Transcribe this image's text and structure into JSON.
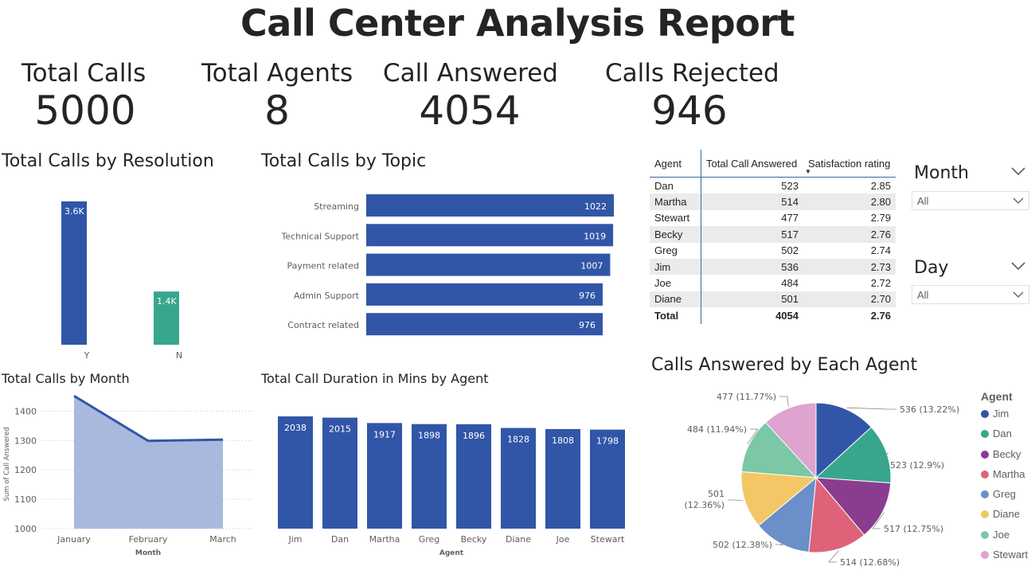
{
  "title": "Call Center Analysis Report",
  "kpis": [
    {
      "label": "Total Calls",
      "value": "5000"
    },
    {
      "label": "Total Agents",
      "value": "8"
    },
    {
      "label": "Call Answered",
      "value": "4054"
    },
    {
      "label": "Calls Rejected",
      "value": "946"
    }
  ],
  "colors": {
    "primary": "#3156a7",
    "teal": "#36a78c",
    "area_fill": "#a9b9dd",
    "table_line": "#3a66a7"
  },
  "chart_data": [
    {
      "type": "bar",
      "title": "Total Calls by Resolution",
      "categories": [
        "Y",
        "N"
      ],
      "values": [
        3646,
        1354
      ],
      "data_labels": [
        "3.6K",
        "1.4K"
      ],
      "colors": [
        "#3156a7",
        "#36a78c"
      ]
    },
    {
      "type": "bar",
      "orientation": "horizontal",
      "title": "Total Calls by Topic",
      "categories": [
        "Streaming",
        "Technical Support",
        "Payment related",
        "Admin Support",
        "Contract related"
      ],
      "values": [
        1022,
        1019,
        1007,
        976,
        976
      ]
    },
    {
      "type": "area",
      "title": "Total Calls by Month",
      "xlabel": "Month",
      "ylabel": "Sum of Call Answered",
      "categories": [
        "January",
        "February",
        "March"
      ],
      "values": [
        1452,
        1299,
        1303
      ],
      "ylim": [
        1000,
        1450
      ],
      "yticks": [
        "1000",
        "1100",
        "1200",
        "1300",
        "1400"
      ],
      "grid": true
    },
    {
      "type": "bar",
      "title": "Total Call Duration in Mins by Agent",
      "xlabel": "Agent",
      "categories": [
        "Jim",
        "Dan",
        "Martha",
        "Greg",
        "Becky",
        "Diane",
        "Joe",
        "Stewart"
      ],
      "values": [
        2038,
        2015,
        1917,
        1898,
        1896,
        1828,
        1808,
        1798
      ]
    },
    {
      "type": "table",
      "columns": [
        "Agent",
        "Total Call Answered",
        "Satisfaction rating"
      ],
      "rows": [
        [
          "Dan",
          "523",
          "2.85"
        ],
        [
          "Martha",
          "514",
          "2.80"
        ],
        [
          "Stewart",
          "477",
          "2.79"
        ],
        [
          "Becky",
          "517",
          "2.76"
        ],
        [
          "Greg",
          "502",
          "2.74"
        ],
        [
          "Jim",
          "536",
          "2.73"
        ],
        [
          "Joe",
          "484",
          "2.72"
        ],
        [
          "Diane",
          "501",
          "2.70"
        ]
      ],
      "total": [
        "Total",
        "4054",
        "2.76"
      ]
    },
    {
      "type": "pie",
      "title": "Calls Answered by Each Agent",
      "legend_title": "Agent",
      "legend_position": "right",
      "slices": [
        {
          "name": "Jim",
          "value": 536,
          "label": "536 (13.22%)",
          "color": "#3156a7"
        },
        {
          "name": "Dan",
          "value": 523,
          "label": "523 (12.9%)",
          "color": "#36a78c"
        },
        {
          "name": "Becky",
          "value": 517,
          "label": "517 (12.75%)",
          "color": "#8a3d8f"
        },
        {
          "name": "Martha",
          "value": 514,
          "label": "514 (12.68%)",
          "color": "#df6378"
        },
        {
          "name": "Greg",
          "value": 502,
          "label": "502 (12.38%)",
          "color": "#6b8fc9"
        },
        {
          "name": "Diane",
          "value": 501,
          "label": "501 (12.36%)",
          "color": "#f3c766"
        },
        {
          "name": "Joe",
          "value": 484,
          "label": "484 (11.94%)",
          "color": "#7cc7a6"
        },
        {
          "name": "Stewart",
          "value": 477,
          "label": "477 (11.77%)",
          "color": "#dea3ce"
        }
      ]
    }
  ],
  "slicers": [
    {
      "title": "Month",
      "value": "All"
    },
    {
      "title": "Day",
      "value": "All"
    }
  ]
}
